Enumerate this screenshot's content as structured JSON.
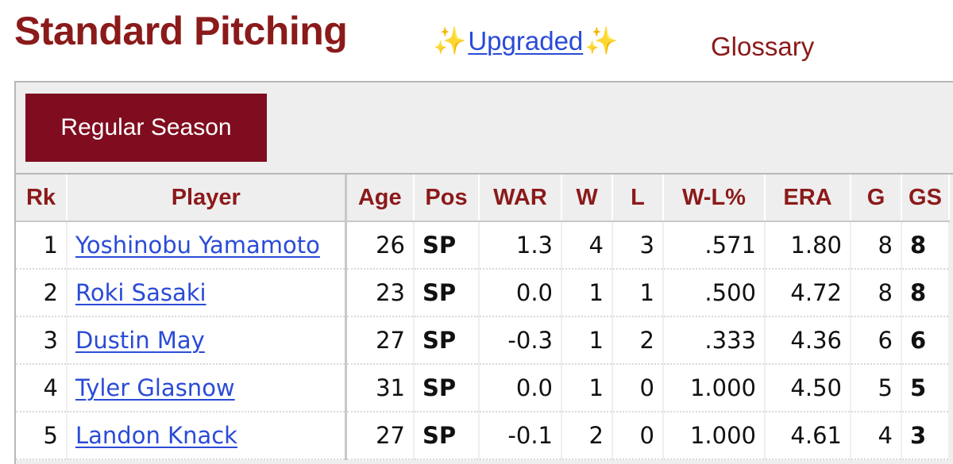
{
  "header": {
    "title": "Standard Pitching",
    "upgraded_prefix": "✨",
    "upgraded_label": "Upgraded",
    "upgraded_suffix": "✨",
    "glossary_label": "Glossary"
  },
  "season_tab": {
    "label": "Regular Season"
  },
  "table": {
    "columns": [
      "Rk",
      "Player",
      "Age",
      "Pos",
      "WAR",
      "W",
      "L",
      "W-L%",
      "ERA",
      "G",
      "GS"
    ],
    "rows": [
      {
        "rk": "1",
        "player": "Yoshinobu Yamamoto",
        "age": "26",
        "pos": "SP",
        "war": "1.3",
        "w": "4",
        "l": "3",
        "wl_pct": ".571",
        "era": "1.80",
        "g": "8",
        "gs": "8"
      },
      {
        "rk": "2",
        "player": "Roki Sasaki",
        "age": "23",
        "pos": "SP",
        "war": "0.0",
        "w": "1",
        "l": "1",
        "wl_pct": ".500",
        "era": "4.72",
        "g": "8",
        "gs": "8"
      },
      {
        "rk": "3",
        "player": "Dustin May",
        "age": "27",
        "pos": "SP",
        "war": "-0.3",
        "w": "1",
        "l": "2",
        "wl_pct": ".333",
        "era": "4.36",
        "g": "6",
        "gs": "6"
      },
      {
        "rk": "4",
        "player": "Tyler Glasnow",
        "age": "31",
        "pos": "SP",
        "war": "0.0",
        "w": "1",
        "l": "0",
        "wl_pct": "1.000",
        "era": "4.50",
        "g": "5",
        "gs": "5"
      },
      {
        "rk": "5",
        "player": "Landon Knack",
        "age": "27",
        "pos": "SP",
        "war": "-0.1",
        "w": "2",
        "l": "0",
        "wl_pct": "1.000",
        "era": "4.61",
        "g": "4",
        "gs": "3"
      }
    ]
  },
  "colors": {
    "title": "#8b1a1a",
    "link": "#2a4bd7",
    "season_button_bg": "#800d1f",
    "header_bg": "#eeeeee"
  }
}
